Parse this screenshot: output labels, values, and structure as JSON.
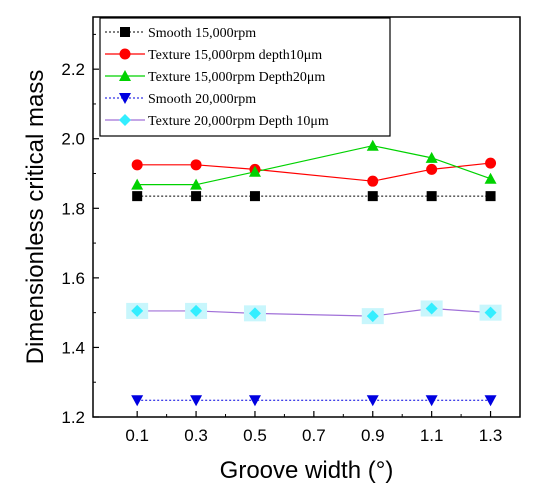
{
  "chart_data": {
    "type": "line",
    "xlabel": "Groove width (°)",
    "ylabel": "Dimensionless critical mass",
    "x": [
      0.1,
      0.3,
      0.5,
      0.9,
      1.1,
      1.3
    ],
    "xticks": [
      "0.1",
      "0.3",
      "0.5",
      "0.7",
      "0.9",
      "1.1",
      "1.3"
    ],
    "xlim": [
      -0.05,
      1.4
    ],
    "ylim": [
      1.2,
      2.35
    ],
    "yticks": [
      "1.2",
      "1.4",
      "1.6",
      "1.8",
      "2.0",
      "2.2"
    ],
    "grid": false,
    "legend_position": "top-left",
    "series": [
      {
        "name": "Smooth 15,000rpm",
        "values": [
          1.835,
          1.835,
          1.835,
          1.835,
          1.835,
          1.835
        ],
        "color": "#000000",
        "marker": "square",
        "line": "dotted"
      },
      {
        "name": "Texture 15,000rpm depth10μm",
        "values": [
          1.925,
          1.925,
          1.912,
          1.878,
          1.912,
          1.93
        ],
        "color": "#ff0000",
        "marker": "circle",
        "line": "solid"
      },
      {
        "name": "Texture 15,000rpm Depth20μm",
        "values": [
          1.868,
          1.868,
          1.905,
          1.98,
          1.945,
          1.885
        ],
        "color": "#00d200",
        "marker": "triangle-up",
        "line": "solid"
      },
      {
        "name": "Smooth 20,000rpm",
        "values": [
          1.248,
          1.248,
          1.248,
          1.248,
          1.248,
          1.248
        ],
        "color": "#0000e0",
        "marker": "triangle-down",
        "line": "dotted"
      },
      {
        "name": "Texture 20,000rpm Depth 10μm",
        "values": [
          1.505,
          1.505,
          1.498,
          1.49,
          1.512,
          1.5
        ],
        "color": "#33eeff",
        "marker": "diamond",
        "line": "solid",
        "line_color": "#a070d8"
      }
    ]
  }
}
